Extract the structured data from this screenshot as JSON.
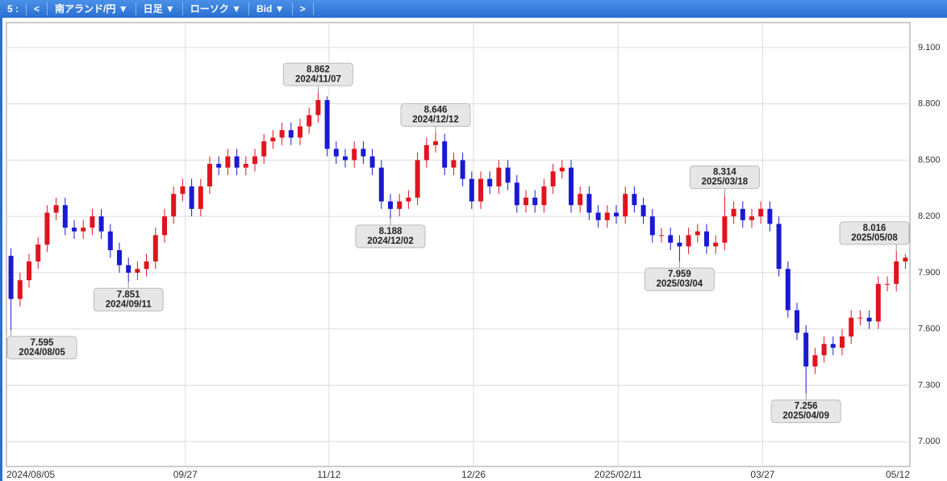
{
  "toolbar": {
    "items": [
      "5 :",
      "<",
      "南アランド/円 ▼",
      "日足 ▼",
      "ローソク ▼",
      "Bid ▼",
      ">"
    ]
  },
  "chart_data": {
    "type": "candlestick",
    "up_color": "#e0141e",
    "down_color": "#1a1ad0",
    "grid": true,
    "ylim": [
      6.867,
      9.233
    ],
    "yticks": [
      {
        "value": 7.0,
        "label": "7.000"
      },
      {
        "value": 7.3,
        "label": "7.300"
      },
      {
        "value": 7.6,
        "label": "7.600"
      },
      {
        "value": 7.9,
        "label": "7.900"
      },
      {
        "value": 8.2,
        "label": "8.200"
      },
      {
        "value": 8.5,
        "label": "8.500"
      },
      {
        "value": 8.8,
        "label": "8.800"
      },
      {
        "value": 9.1,
        "label": "9.100"
      }
    ],
    "xticks": [
      {
        "value": 0,
        "label": "2024/08/05"
      },
      {
        "value": 19.3,
        "label": "09/27"
      },
      {
        "value": 35.2,
        "label": "11/12"
      },
      {
        "value": 51.2,
        "label": "12/26"
      },
      {
        "value": 67.2,
        "label": "2025/02/11"
      },
      {
        "value": 83.2,
        "label": "03/27"
      },
      {
        "value": 99.2,
        "label": "05/12"
      }
    ],
    "categories": [
      "2024/08/05",
      null,
      null,
      null,
      null,
      null,
      null,
      null,
      null,
      null,
      null,
      null,
      null,
      "2024/09/11",
      null,
      null,
      null,
      null,
      null,
      null,
      null,
      null,
      null,
      null,
      null,
      null,
      null,
      null,
      null,
      null,
      null,
      null,
      null,
      null,
      "2024/11/07",
      null,
      null,
      null,
      null,
      null,
      null,
      null,
      "2024/12/02",
      null,
      null,
      null,
      null,
      "2024/12/12",
      null,
      null,
      null,
      null,
      null,
      null,
      null,
      null,
      null,
      null,
      null,
      null,
      null,
      null,
      null,
      null,
      null,
      null,
      null,
      null,
      null,
      null,
      null,
      null,
      null,
      null,
      "2025/03/04",
      null,
      null,
      null,
      null,
      "2025/03/18",
      null,
      null,
      null,
      null,
      null,
      null,
      null,
      null,
      "2025/04/09",
      null,
      null,
      null,
      null,
      null,
      null,
      null,
      null,
      null,
      "2025/05/08",
      null
    ],
    "open": [
      7.99,
      7.76,
      7.86,
      7.96,
      8.05,
      8.22,
      8.26,
      8.14,
      8.12,
      8.14,
      8.2,
      8.12,
      8.02,
      7.94,
      7.9,
      7.92,
      7.96,
      8.1,
      8.2,
      8.32,
      8.36,
      8.24,
      8.36,
      8.48,
      8.46,
      8.52,
      8.46,
      8.48,
      8.52,
      8.6,
      8.62,
      8.66,
      8.62,
      8.68,
      8.74,
      8.82,
      8.56,
      8.52,
      8.5,
      8.56,
      8.52,
      8.46,
      8.28,
      8.24,
      8.28,
      8.3,
      8.5,
      8.58,
      8.6,
      8.46,
      8.5,
      8.4,
      8.28,
      8.4,
      8.36,
      8.46,
      8.38,
      8.26,
      8.3,
      8.26,
      8.36,
      8.44,
      8.46,
      8.26,
      8.32,
      8.22,
      8.18,
      8.22,
      8.2,
      8.32,
      8.26,
      8.2,
      8.1,
      8.1,
      8.06,
      8.04,
      8.1,
      8.12,
      8.04,
      8.06,
      8.2,
      8.24,
      8.18,
      8.2,
      8.24,
      8.16,
      7.92,
      7.7,
      7.58,
      7.4,
      7.46,
      7.52,
      7.5,
      7.56,
      7.66,
      7.66,
      7.64,
      7.84,
      7.84,
      7.96
    ],
    "high": [
      8.03,
      7.9,
      8.0,
      8.09,
      8.26,
      8.3,
      8.3,
      8.18,
      8.18,
      8.24,
      8.24,
      8.16,
      8.06,
      7.98,
      7.96,
      8.0,
      8.14,
      8.24,
      8.36,
      8.4,
      8.4,
      8.4,
      8.52,
      8.52,
      8.56,
      8.56,
      8.52,
      8.56,
      8.64,
      8.66,
      8.7,
      8.7,
      8.72,
      8.78,
      8.862,
      8.84,
      8.6,
      8.56,
      8.6,
      8.6,
      8.56,
      8.5,
      8.32,
      8.32,
      8.34,
      8.54,
      8.62,
      8.646,
      8.64,
      8.54,
      8.54,
      8.44,
      8.44,
      8.44,
      8.5,
      8.5,
      8.42,
      8.34,
      8.34,
      8.4,
      8.48,
      8.5,
      8.5,
      8.36,
      8.36,
      8.26,
      8.26,
      8.26,
      8.36,
      8.36,
      8.3,
      8.24,
      8.14,
      8.14,
      8.1,
      8.14,
      8.16,
      8.16,
      8.1,
      8.314,
      8.28,
      8.28,
      8.24,
      8.28,
      8.28,
      8.2,
      7.96,
      7.74,
      7.62,
      7.5,
      7.56,
      7.56,
      7.6,
      7.7,
      7.7,
      7.7,
      7.88,
      7.88,
      8.016,
      8.0
    ],
    "low": [
      7.595,
      7.72,
      7.82,
      7.92,
      8.01,
      8.18,
      8.1,
      8.08,
      8.08,
      8.1,
      8.08,
      7.98,
      7.9,
      7.851,
      7.86,
      7.88,
      7.92,
      8.06,
      8.16,
      8.28,
      8.2,
      8.2,
      8.32,
      8.42,
      8.42,
      8.42,
      8.42,
      8.44,
      8.48,
      8.56,
      8.58,
      8.58,
      8.58,
      8.64,
      8.7,
      8.52,
      8.48,
      8.46,
      8.46,
      8.48,
      8.42,
      8.24,
      8.188,
      8.2,
      8.24,
      8.26,
      8.46,
      8.54,
      8.42,
      8.42,
      8.36,
      8.24,
      8.24,
      8.32,
      8.32,
      8.34,
      8.22,
      8.22,
      8.22,
      8.22,
      8.32,
      8.4,
      8.22,
      8.22,
      8.18,
      8.14,
      8.14,
      8.16,
      8.16,
      8.22,
      8.16,
      8.06,
      8.06,
      8.02,
      7.959,
      8.0,
      8.06,
      8.0,
      8.0,
      8.02,
      8.16,
      8.14,
      8.14,
      8.16,
      8.12,
      7.88,
      7.66,
      7.54,
      7.256,
      7.36,
      7.42,
      7.46,
      7.46,
      7.52,
      7.62,
      7.6,
      7.6,
      7.8,
      7.8,
      7.92
    ],
    "close": [
      7.76,
      7.86,
      7.96,
      8.05,
      8.22,
      8.26,
      8.14,
      8.12,
      8.14,
      8.2,
      8.12,
      8.02,
      7.94,
      7.9,
      7.92,
      7.96,
      8.1,
      8.2,
      8.32,
      8.36,
      8.24,
      8.36,
      8.48,
      8.46,
      8.52,
      8.46,
      8.48,
      8.52,
      8.6,
      8.62,
      8.66,
      8.62,
      8.68,
      8.74,
      8.82,
      8.56,
      8.52,
      8.5,
      8.56,
      8.52,
      8.46,
      8.28,
      8.24,
      8.28,
      8.3,
      8.5,
      8.58,
      8.6,
      8.46,
      8.5,
      8.4,
      8.28,
      8.4,
      8.36,
      8.46,
      8.38,
      8.26,
      8.3,
      8.26,
      8.36,
      8.44,
      8.46,
      8.26,
      8.32,
      8.22,
      8.18,
      8.22,
      8.2,
      8.32,
      8.26,
      8.2,
      8.1,
      8.1,
      8.06,
      8.04,
      8.1,
      8.12,
      8.04,
      8.06,
      8.2,
      8.24,
      8.18,
      8.2,
      8.24,
      8.16,
      7.92,
      7.7,
      7.58,
      7.4,
      7.46,
      7.52,
      7.5,
      7.56,
      7.66,
      7.66,
      7.64,
      7.84,
      7.84,
      7.96,
      7.98
    ]
  }
}
